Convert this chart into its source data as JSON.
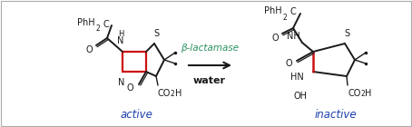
{
  "fig_width": 4.54,
  "fig_height": 1.4,
  "dpi": 100,
  "bg_color": "#ffffff",
  "border_color": "#aaaaaa",
  "black": "#1a1a1a",
  "blue": "#1a3faa",
  "green": "#2a9060",
  "red": "#cc1111",
  "label_active": "active",
  "label_inactive": "inactive",
  "enzyme": "β-lactamase",
  "water": "water"
}
